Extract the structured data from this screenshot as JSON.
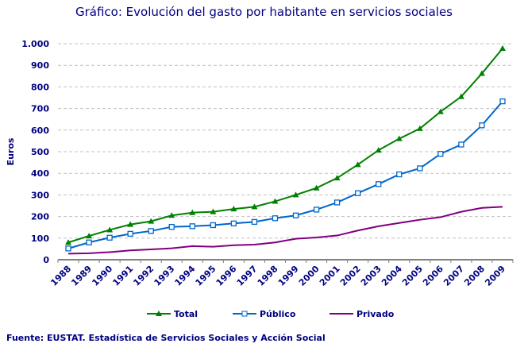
{
  "chart_data": {
    "type": "line",
    "title": "Gráfico: Evolución del gasto por habitante en servicios sociales",
    "xlabel": "",
    "ylabel": "Euros",
    "ylim": [
      0,
      1000
    ],
    "yticks": [
      0,
      100,
      200,
      300,
      400,
      500,
      600,
      700,
      800,
      900,
      1000
    ],
    "ytick_labels": [
      "0",
      "100",
      "200",
      "300",
      "400",
      "500",
      "600",
      "700",
      "800",
      "900",
      "1.000"
    ],
    "grid": "horizontal dashed",
    "legend": "bottom",
    "categories": [
      "1988",
      "1989",
      "1990",
      "1991",
      "1992",
      "1993",
      "1994",
      "1995",
      "1996",
      "1997",
      "1998",
      "1999",
      "2000",
      "2001",
      "2002",
      "2003",
      "2004",
      "2005",
      "2006",
      "2007",
      "2008",
      "2009"
    ],
    "series": [
      {
        "name": "Total",
        "color": "#008000",
        "marker": "triangle",
        "values": [
          80,
          110,
          138,
          163,
          178,
          205,
          218,
          222,
          235,
          245,
          270,
          300,
          332,
          378,
          440,
          507,
          560,
          607,
          685,
          755,
          862,
          978
        ]
      },
      {
        "name": "Público",
        "color": "#0066CC",
        "marker": "square",
        "values": [
          52,
          80,
          102,
          120,
          133,
          152,
          155,
          160,
          168,
          175,
          192,
          205,
          232,
          265,
          308,
          350,
          395,
          423,
          490,
          533,
          622,
          733
        ]
      },
      {
        "name": "Privado",
        "color": "#800080",
        "marker": "none",
        "values": [
          28,
          30,
          35,
          43,
          48,
          53,
          63,
          60,
          67,
          70,
          80,
          97,
          103,
          112,
          135,
          155,
          170,
          185,
          197,
          222,
          240,
          245
        ]
      }
    ],
    "source": "Fuente: EUSTAT. Estadística de Servicios Sociales y Acción Social"
  }
}
